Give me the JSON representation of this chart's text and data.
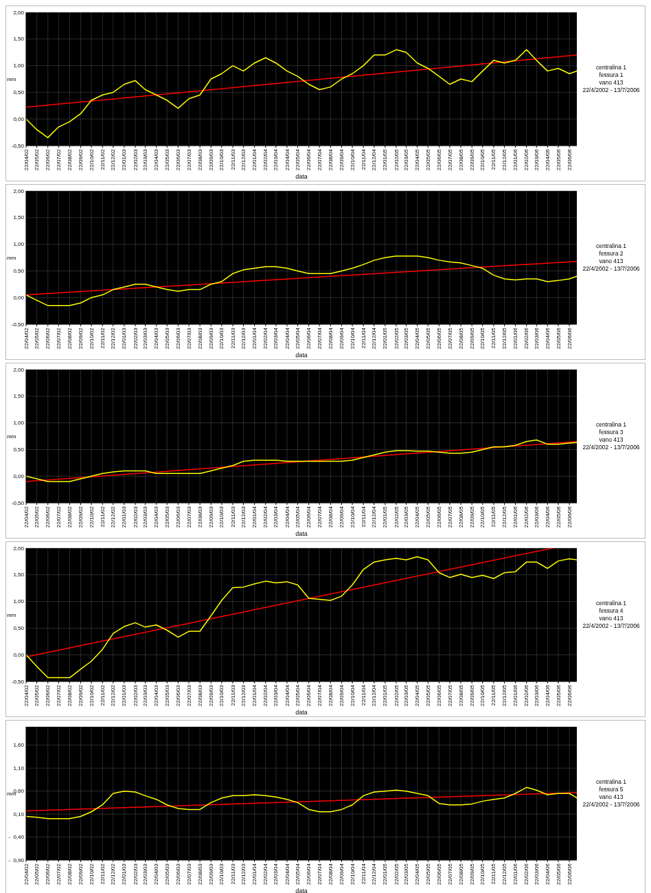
{
  "chart_data": [
    {
      "type": "line",
      "xlabel": "data",
      "ylabel": "mm",
      "grid": true,
      "xlim": [
        "2002-04-22",
        "2006-07-13"
      ],
      "ylim": [
        -0.5,
        2
      ],
      "yticks": [
        {
          "value": 2,
          "label": "2,00"
        },
        {
          "value": 1.5,
          "label": "1,50"
        },
        {
          "value": 1,
          "label": "1,00"
        },
        {
          "value": 0.5,
          "label": "0,50"
        },
        {
          "value": 0,
          "label": "0,00"
        },
        {
          "value": -0.5,
          "label": "-0,50"
        }
      ],
      "xticks": [
        {
          "value": "2002-04-22",
          "label": "22/04/02"
        },
        {
          "value": "2002-05-22",
          "label": "22/05/02"
        },
        {
          "value": "2002-06-22",
          "label": "22/06/02"
        },
        {
          "value": "2002-07-22",
          "label": "22/07/02"
        },
        {
          "value": "2002-08-22",
          "label": "22/08/02"
        },
        {
          "value": "2002-09-22",
          "label": "22/09/02"
        },
        {
          "value": "2002-10-22",
          "label": "22/10/02"
        },
        {
          "value": "2002-11-22",
          "label": "22/11/02"
        },
        {
          "value": "2002-12-22",
          "label": "22/12/02"
        },
        {
          "value": "2003-01-22",
          "label": "22/01/03"
        },
        {
          "value": "2003-02-22",
          "label": "22/02/03"
        },
        {
          "value": "2003-03-22",
          "label": "22/03/03"
        },
        {
          "value": "2003-04-22",
          "label": "22/04/03"
        },
        {
          "value": "2003-05-22",
          "label": "22/05/03"
        },
        {
          "value": "2003-06-22",
          "label": "22/06/03"
        },
        {
          "value": "2003-07-22",
          "label": "22/07/03"
        },
        {
          "value": "2003-08-22",
          "label": "22/08/03"
        },
        {
          "value": "2003-09-22",
          "label": "22/09/03"
        },
        {
          "value": "2003-10-22",
          "label": "22/10/03"
        },
        {
          "value": "2003-11-22",
          "label": "22/11/03"
        },
        {
          "value": "2003-12-22",
          "label": "22/12/03"
        },
        {
          "value": "2004-01-22",
          "label": "22/01/04"
        },
        {
          "value": "2004-02-22",
          "label": "22/02/04"
        },
        {
          "value": "2004-03-22",
          "label": "22/03/04"
        },
        {
          "value": "2004-04-22",
          "label": "22/04/04"
        },
        {
          "value": "2004-05-22",
          "label": "22/05/04"
        },
        {
          "value": "2004-06-22",
          "label": "22/06/04"
        },
        {
          "value": "2004-07-22",
          "label": "22/07/04"
        },
        {
          "value": "2004-08-22",
          "label": "22/08/04"
        },
        {
          "value": "2004-09-22",
          "label": "22/09/04"
        },
        {
          "value": "2004-10-22",
          "label": "22/10/04"
        },
        {
          "value": "2004-11-22",
          "label": "22/11/04"
        },
        {
          "value": "2004-12-22",
          "label": "22/12/04"
        },
        {
          "value": "2005-01-22",
          "label": "22/01/05"
        },
        {
          "value": "2005-02-22",
          "label": "22/02/05"
        },
        {
          "value": "2005-03-22",
          "label": "22/03/05"
        },
        {
          "value": "2005-04-22",
          "label": "22/04/05"
        },
        {
          "value": "2005-05-22",
          "label": "22/05/05"
        },
        {
          "value": "2005-06-22",
          "label": "22/06/05"
        },
        {
          "value": "2005-07-22",
          "label": "22/07/05"
        },
        {
          "value": "2005-08-22",
          "label": "22/08/05"
        },
        {
          "value": "2005-09-22",
          "label": "22/09/05"
        },
        {
          "value": "2005-10-22",
          "label": "22/10/05"
        },
        {
          "value": "2005-11-22",
          "label": "22/11/05"
        },
        {
          "value": "2005-12-22",
          "label": "22/12/05"
        },
        {
          "value": "2006-01-22",
          "label": "22/01/06"
        },
        {
          "value": "2006-02-22",
          "label": "22/02/06"
        },
        {
          "value": "2006-03-22",
          "label": "22/03/06"
        },
        {
          "value": "2006-04-22",
          "label": "22/04/06"
        },
        {
          "value": "2006-05-22",
          "label": "22/05/06"
        },
        {
          "value": "2006-06-22",
          "label": "22/06/06"
        }
      ],
      "annotations": [
        "centralina 1",
        "fessura 1",
        "vano 413",
        "22/4/2002 - 13/7/2006"
      ],
      "x": [
        "2002-04-22",
        "2002-05-22",
        "2002-06-22",
        "2002-07-22",
        "2002-08-22",
        "2002-09-22",
        "2002-10-22",
        "2002-11-22",
        "2002-12-22",
        "2003-01-22",
        "2003-02-22",
        "2003-03-22",
        "2003-04-22",
        "2003-05-22",
        "2003-06-22",
        "2003-07-22",
        "2003-08-22",
        "2003-09-22",
        "2003-10-22",
        "2003-11-22",
        "2003-12-22",
        "2004-01-22",
        "2004-02-22",
        "2004-03-22",
        "2004-04-22",
        "2004-05-22",
        "2004-06-22",
        "2004-07-22",
        "2004-08-22",
        "2004-09-22",
        "2004-10-22",
        "2004-11-22",
        "2004-12-22",
        "2005-01-22",
        "2005-02-22",
        "2005-03-22",
        "2005-04-22",
        "2005-05-22",
        "2005-06-22",
        "2005-07-22",
        "2005-08-22",
        "2005-09-22",
        "2005-10-22",
        "2005-11-22",
        "2005-12-22",
        "2006-01-22",
        "2006-02-22",
        "2006-03-22",
        "2006-04-22",
        "2006-05-22",
        "2006-06-22",
        "2006-07-13"
      ],
      "series": [
        {
          "type": "line",
          "color": "#ffff00",
          "values": [
            0.0,
            -0.2,
            -0.35,
            -0.15,
            -0.05,
            0.1,
            0.35,
            0.45,
            0.5,
            0.65,
            0.72,
            0.55,
            0.45,
            0.35,
            0.2,
            0.38,
            0.45,
            0.75,
            0.85,
            1.0,
            0.9,
            1.05,
            1.15,
            1.05,
            0.9,
            0.8,
            0.65,
            0.55,
            0.6,
            0.75,
            0.85,
            1.0,
            1.2,
            1.2,
            1.3,
            1.25,
            1.05,
            0.95,
            0.8,
            0.65,
            0.75,
            0.7,
            0.9,
            1.1,
            1.05,
            1.1,
            1.3,
            1.1,
            0.9,
            0.95,
            0.85,
            0.9
          ]
        },
        {
          "type": "line",
          "color": "#ff0000",
          "x": [
            "2002-04-22",
            "2006-07-13"
          ],
          "values": [
            0.22,
            1.2
          ]
        }
      ]
    },
    {
      "type": "line",
      "xlabel": "data",
      "ylabel": "mm",
      "grid": true,
      "xlim": [
        "2002-04-22",
        "2006-07-13"
      ],
      "ylim": [
        -0.5,
        2
      ],
      "yticks": [
        {
          "value": 2,
          "label": "2,00"
        },
        {
          "value": 1.5,
          "label": "1,50"
        },
        {
          "value": 1,
          "label": "1,00"
        },
        {
          "value": 0.5,
          "label": "0,50"
        },
        {
          "value": 0,
          "label": "0,00"
        },
        {
          "value": -0.5,
          "label": "-0,50"
        }
      ],
      "xticks": [
        {
          "value": "2002-04-22",
          "label": "22/04/02"
        },
        {
          "value": "2002-05-22",
          "label": "22/05/02"
        },
        {
          "value": "2002-06-22",
          "label": "22/06/02"
        },
        {
          "value": "2002-07-22",
          "label": "22/07/02"
        },
        {
          "value": "2002-08-22",
          "label": "22/08/02"
        },
        {
          "value": "2002-09-22",
          "label": "22/09/02"
        },
        {
          "value": "2002-10-22",
          "label": "22/10/02"
        },
        {
          "value": "2002-11-22",
          "label": "22/11/02"
        },
        {
          "value": "2002-12-22",
          "label": "22/12/02"
        },
        {
          "value": "2003-01-22",
          "label": "22/01/03"
        },
        {
          "value": "2003-02-22",
          "label": "22/02/03"
        },
        {
          "value": "2003-03-22",
          "label": "22/03/03"
        },
        {
          "value": "2003-04-22",
          "label": "22/04/03"
        },
        {
          "value": "2003-05-22",
          "label": "22/05/03"
        },
        {
          "value": "2003-06-22",
          "label": "22/06/03"
        },
        {
          "value": "2003-07-22",
          "label": "22/07/03"
        },
        {
          "value": "2003-08-22",
          "label": "22/08/03"
        },
        {
          "value": "2003-09-22",
          "label": "22/09/03"
        },
        {
          "value": "2003-10-22",
          "label": "22/10/03"
        },
        {
          "value": "2003-11-22",
          "label": "22/11/03"
        },
        {
          "value": "2003-12-22",
          "label": "22/12/03"
        },
        {
          "value": "2004-01-22",
          "label": "22/01/04"
        },
        {
          "value": "2004-02-22",
          "label": "22/02/04"
        },
        {
          "value": "2004-03-22",
          "label": "22/03/04"
        },
        {
          "value": "2004-04-22",
          "label": "22/04/04"
        },
        {
          "value": "2004-05-22",
          "label": "22/05/04"
        },
        {
          "value": "2004-06-22",
          "label": "22/06/04"
        },
        {
          "value": "2004-07-22",
          "label": "22/07/04"
        },
        {
          "value": "2004-08-22",
          "label": "22/08/04"
        },
        {
          "value": "2004-09-22",
          "label": "22/09/04"
        },
        {
          "value": "2004-10-22",
          "label": "22/10/04"
        },
        {
          "value": "2004-11-22",
          "label": "22/11/04"
        },
        {
          "value": "2004-12-22",
          "label": "22/12/04"
        },
        {
          "value": "2005-01-22",
          "label": "22/01/05"
        },
        {
          "value": "2005-02-22",
          "label": "22/02/05"
        },
        {
          "value": "2005-03-22",
          "label": "22/03/05"
        },
        {
          "value": "2005-04-22",
          "label": "22/04/05"
        },
        {
          "value": "2005-05-22",
          "label": "22/05/05"
        },
        {
          "value": "2005-06-22",
          "label": "22/06/05"
        },
        {
          "value": "2005-07-22",
          "label": "22/07/05"
        },
        {
          "value": "2005-08-22",
          "label": "22/08/05"
        },
        {
          "value": "2005-09-22",
          "label": "22/09/05"
        },
        {
          "value": "2005-10-22",
          "label": "22/10/05"
        },
        {
          "value": "2005-11-22",
          "label": "22/11/05"
        },
        {
          "value": "2005-12-22",
          "label": "22/12/05"
        },
        {
          "value": "2006-01-22",
          "label": "22/01/06"
        },
        {
          "value": "2006-02-22",
          "label": "22/02/06"
        },
        {
          "value": "2006-03-22",
          "label": "22/03/06"
        },
        {
          "value": "2006-04-22",
          "label": "22/04/06"
        },
        {
          "value": "2006-05-22",
          "label": "22/05/06"
        },
        {
          "value": "2006-06-22",
          "label": "22/06/06"
        }
      ],
      "annotations": [
        "centralina 1",
        "fessura 2",
        "vano 413",
        "22/4/2002 - 13/7/2006"
      ],
      "x": [
        "2002-04-22",
        "2002-05-22",
        "2002-06-22",
        "2002-07-22",
        "2002-08-22",
        "2002-09-22",
        "2002-10-22",
        "2002-11-22",
        "2002-12-22",
        "2003-01-22",
        "2003-02-22",
        "2003-03-22",
        "2003-04-22",
        "2003-05-22",
        "2003-06-22",
        "2003-07-22",
        "2003-08-22",
        "2003-09-22",
        "2003-10-22",
        "2003-11-22",
        "2003-12-22",
        "2004-01-22",
        "2004-02-22",
        "2004-03-22",
        "2004-04-22",
        "2004-05-22",
        "2004-06-22",
        "2004-07-22",
        "2004-08-22",
        "2004-09-22",
        "2004-10-22",
        "2004-11-22",
        "2004-12-22",
        "2005-01-22",
        "2005-02-22",
        "2005-03-22",
        "2005-04-22",
        "2005-05-22",
        "2005-06-22",
        "2005-07-22",
        "2005-08-22",
        "2005-09-22",
        "2005-10-22",
        "2005-11-22",
        "2005-12-22",
        "2006-01-22",
        "2006-02-22",
        "2006-03-22",
        "2006-04-22",
        "2006-05-22",
        "2006-06-22",
        "2006-07-13"
      ],
      "series": [
        {
          "type": "line",
          "color": "#ffff00",
          "values": [
            0.05,
            -0.05,
            -0.15,
            -0.15,
            -0.15,
            -0.1,
            0.0,
            0.05,
            0.15,
            0.2,
            0.25,
            0.25,
            0.2,
            0.15,
            0.12,
            0.15,
            0.15,
            0.25,
            0.3,
            0.45,
            0.52,
            0.55,
            0.58,
            0.58,
            0.55,
            0.5,
            0.45,
            0.45,
            0.45,
            0.5,
            0.55,
            0.62,
            0.7,
            0.75,
            0.78,
            0.78,
            0.78,
            0.75,
            0.7,
            0.67,
            0.65,
            0.6,
            0.55,
            0.42,
            0.35,
            0.33,
            0.35,
            0.35,
            0.3,
            0.32,
            0.35,
            0.4
          ]
        },
        {
          "type": "line",
          "color": "#ff0000",
          "x": [
            "2002-04-22",
            "2006-07-13"
          ],
          "values": [
            0.05,
            0.68
          ]
        }
      ]
    },
    {
      "type": "line",
      "xlabel": "data",
      "ylabel": "mm",
      "grid": true,
      "xlim": [
        "2002-04-22",
        "2006-07-13"
      ],
      "ylim": [
        -0.5,
        2
      ],
      "yticks": [
        {
          "value": 2,
          "label": "2,00"
        },
        {
          "value": 1.5,
          "label": "1,50"
        },
        {
          "value": 1,
          "label": "1,00"
        },
        {
          "value": 0.5,
          "label": "0,50"
        },
        {
          "value": 0,
          "label": "0,00"
        },
        {
          "value": -0.5,
          "label": "-0,50"
        }
      ],
      "xticks": [
        {
          "value": "2002-04-22",
          "label": "22/04/02"
        },
        {
          "value": "2002-05-22",
          "label": "22/05/02"
        },
        {
          "value": "2002-06-22",
          "label": "22/06/02"
        },
        {
          "value": "2002-07-22",
          "label": "22/07/02"
        },
        {
          "value": "2002-08-22",
          "label": "22/08/02"
        },
        {
          "value": "2002-09-22",
          "label": "22/09/02"
        },
        {
          "value": "2002-10-22",
          "label": "22/10/02"
        },
        {
          "value": "2002-11-22",
          "label": "22/11/02"
        },
        {
          "value": "2002-12-22",
          "label": "22/12/02"
        },
        {
          "value": "2003-01-22",
          "label": "22/01/03"
        },
        {
          "value": "2003-02-22",
          "label": "22/02/03"
        },
        {
          "value": "2003-03-22",
          "label": "22/03/03"
        },
        {
          "value": "2003-04-22",
          "label": "22/04/03"
        },
        {
          "value": "2003-05-22",
          "label": "22/05/03"
        },
        {
          "value": "2003-06-22",
          "label": "22/06/03"
        },
        {
          "value": "2003-07-22",
          "label": "22/07/03"
        },
        {
          "value": "2003-08-22",
          "label": "22/08/03"
        },
        {
          "value": "2003-09-22",
          "label": "22/09/03"
        },
        {
          "value": "2003-10-22",
          "label": "22/10/03"
        },
        {
          "value": "2003-11-22",
          "label": "22/11/03"
        },
        {
          "value": "2003-12-22",
          "label": "22/12/03"
        },
        {
          "value": "2004-01-22",
          "label": "22/01/04"
        },
        {
          "value": "2004-02-22",
          "label": "22/02/04"
        },
        {
          "value": "2004-03-22",
          "label": "22/03/04"
        },
        {
          "value": "2004-04-22",
          "label": "22/04/04"
        },
        {
          "value": "2004-05-22",
          "label": "22/05/04"
        },
        {
          "value": "2004-06-22",
          "label": "22/06/04"
        },
        {
          "value": "2004-07-22",
          "label": "22/07/04"
        },
        {
          "value": "2004-08-22",
          "label": "22/08/04"
        },
        {
          "value": "2004-09-22",
          "label": "22/09/04"
        },
        {
          "value": "2004-10-22",
          "label": "22/10/04"
        },
        {
          "value": "2004-11-22",
          "label": "22/11/04"
        },
        {
          "value": "2004-12-22",
          "label": "22/12/04"
        },
        {
          "value": "2005-01-22",
          "label": "22/01/05"
        },
        {
          "value": "2005-02-22",
          "label": "22/02/05"
        },
        {
          "value": "2005-03-22",
          "label": "22/03/05"
        },
        {
          "value": "2005-04-22",
          "label": "22/04/05"
        },
        {
          "value": "2005-05-22",
          "label": "22/05/05"
        },
        {
          "value": "2005-06-22",
          "label": "22/06/05"
        },
        {
          "value": "2005-07-22",
          "label": "22/07/05"
        },
        {
          "value": "2005-08-22",
          "label": "22/08/05"
        },
        {
          "value": "2005-09-22",
          "label": "22/09/05"
        },
        {
          "value": "2005-10-22",
          "label": "22/10/05"
        },
        {
          "value": "2005-11-22",
          "label": "22/11/05"
        },
        {
          "value": "2005-12-22",
          "label": "22/12/05"
        },
        {
          "value": "2006-01-22",
          "label": "22/01/06"
        },
        {
          "value": "2006-02-22",
          "label": "22/02/06"
        },
        {
          "value": "2006-03-22",
          "label": "22/03/06"
        },
        {
          "value": "2006-04-22",
          "label": "22/04/06"
        },
        {
          "value": "2006-05-22",
          "label": "22/05/06"
        },
        {
          "value": "2006-06-22",
          "label": "22/06/06"
        }
      ],
      "annotations": [
        "centralina 1",
        "fessura 3",
        "vano 413",
        "22/4/2002 - 13/7/2006"
      ],
      "x": [
        "2002-04-22",
        "2002-05-22",
        "2002-06-22",
        "2002-07-22",
        "2002-08-22",
        "2002-09-22",
        "2002-10-22",
        "2002-11-22",
        "2002-12-22",
        "2003-01-22",
        "2003-02-22",
        "2003-03-22",
        "2003-04-22",
        "2003-05-22",
        "2003-06-22",
        "2003-07-22",
        "2003-08-22",
        "2003-09-22",
        "2003-10-22",
        "2003-11-22",
        "2003-12-22",
        "2004-01-22",
        "2004-02-22",
        "2004-03-22",
        "2004-04-22",
        "2004-05-22",
        "2004-06-22",
        "2004-07-22",
        "2004-08-22",
        "2004-09-22",
        "2004-10-22",
        "2004-11-22",
        "2004-12-22",
        "2005-01-22",
        "2005-02-22",
        "2005-03-22",
        "2005-04-22",
        "2005-05-22",
        "2005-06-22",
        "2005-07-22",
        "2005-08-22",
        "2005-09-22",
        "2005-10-22",
        "2005-11-22",
        "2005-12-22",
        "2006-01-22",
        "2006-02-22",
        "2006-03-22",
        "2006-04-22",
        "2006-05-22",
        "2006-06-22",
        "2006-07-13"
      ],
      "series": [
        {
          "type": "line",
          "color": "#ffff00",
          "values": [
            0.0,
            -0.05,
            -0.1,
            -0.1,
            -0.1,
            -0.05,
            0.0,
            0.05,
            0.08,
            0.1,
            0.1,
            0.1,
            0.05,
            0.05,
            0.05,
            0.05,
            0.05,
            0.1,
            0.15,
            0.2,
            0.28,
            0.3,
            0.3,
            0.3,
            0.28,
            0.28,
            0.28,
            0.28,
            0.28,
            0.28,
            0.3,
            0.35,
            0.4,
            0.45,
            0.48,
            0.48,
            0.47,
            0.47,
            0.45,
            0.43,
            0.43,
            0.45,
            0.5,
            0.55,
            0.55,
            0.58,
            0.65,
            0.68,
            0.6,
            0.6,
            0.62,
            0.63
          ]
        },
        {
          "type": "line",
          "color": "#ff0000",
          "x": [
            "2002-04-22",
            "2006-07-13"
          ],
          "values": [
            -0.1,
            0.65
          ]
        }
      ]
    },
    {
      "type": "line",
      "xlabel": "data",
      "ylabel": "mm",
      "grid": true,
      "xlim": [
        "2002-04-22",
        "2006-07-13"
      ],
      "ylim": [
        -0.5,
        2
      ],
      "yticks": [
        {
          "value": 2,
          "label": "2,00"
        },
        {
          "value": 1.5,
          "label": "1,50"
        },
        {
          "value": 1,
          "label": "1,00"
        },
        {
          "value": 0.5,
          "label": "0,50"
        },
        {
          "value": 0,
          "label": "0,00"
        },
        {
          "value": -0.5,
          "label": "-0,50"
        }
      ],
      "xticks": [
        {
          "value": "2002-04-22",
          "label": "22/04/02"
        },
        {
          "value": "2002-05-22",
          "label": "22/05/02"
        },
        {
          "value": "2002-06-22",
          "label": "22/06/02"
        },
        {
          "value": "2002-07-22",
          "label": "22/07/02"
        },
        {
          "value": "2002-08-22",
          "label": "22/08/02"
        },
        {
          "value": "2002-09-22",
          "label": "22/09/02"
        },
        {
          "value": "2002-10-22",
          "label": "22/10/02"
        },
        {
          "value": "2002-11-22",
          "label": "22/11/02"
        },
        {
          "value": "2002-12-22",
          "label": "22/12/02"
        },
        {
          "value": "2003-01-22",
          "label": "22/01/03"
        },
        {
          "value": "2003-02-22",
          "label": "22/02/03"
        },
        {
          "value": "2003-03-22",
          "label": "22/03/03"
        },
        {
          "value": "2003-04-22",
          "label": "22/04/03"
        },
        {
          "value": "2003-05-22",
          "label": "22/05/03"
        },
        {
          "value": "2003-06-22",
          "label": "22/06/03"
        },
        {
          "value": "2003-07-22",
          "label": "22/07/03"
        },
        {
          "value": "2003-08-22",
          "label": "22/08/03"
        },
        {
          "value": "2003-09-22",
          "label": "22/09/03"
        },
        {
          "value": "2003-10-22",
          "label": "22/10/03"
        },
        {
          "value": "2003-11-22",
          "label": "22/11/03"
        },
        {
          "value": "2003-12-22",
          "label": "22/12/03"
        },
        {
          "value": "2004-01-22",
          "label": "22/01/04"
        },
        {
          "value": "2004-02-22",
          "label": "22/02/04"
        },
        {
          "value": "2004-03-22",
          "label": "22/03/04"
        },
        {
          "value": "2004-04-22",
          "label": "22/04/04"
        },
        {
          "value": "2004-05-22",
          "label": "22/05/04"
        },
        {
          "value": "2004-06-22",
          "label": "22/06/04"
        },
        {
          "value": "2004-07-22",
          "label": "22/07/04"
        },
        {
          "value": "2004-08-22",
          "label": "22/08/04"
        },
        {
          "value": "2004-09-22",
          "label": "22/09/04"
        },
        {
          "value": "2004-10-22",
          "label": "22/10/04"
        },
        {
          "value": "2004-11-22",
          "label": "22/11/04"
        },
        {
          "value": "2004-12-22",
          "label": "22/12/04"
        },
        {
          "value": "2005-01-22",
          "label": "22/01/05"
        },
        {
          "value": "2005-02-22",
          "label": "22/02/05"
        },
        {
          "value": "2005-03-22",
          "label": "22/03/05"
        },
        {
          "value": "2005-04-22",
          "label": "22/04/05"
        },
        {
          "value": "2005-05-22",
          "label": "22/05/05"
        },
        {
          "value": "2005-06-22",
          "label": "22/06/05"
        },
        {
          "value": "2005-07-22",
          "label": "22/07/05"
        },
        {
          "value": "2005-08-22",
          "label": "22/08/05"
        },
        {
          "value": "2005-09-22",
          "label": "22/09/05"
        },
        {
          "value": "2005-10-22",
          "label": "22/10/05"
        },
        {
          "value": "2005-11-22",
          "label": "22/11/05"
        },
        {
          "value": "2005-12-22",
          "label": "22/12/05"
        },
        {
          "value": "2006-01-22",
          "label": "22/01/06"
        },
        {
          "value": "2006-02-22",
          "label": "22/02/06"
        },
        {
          "value": "2006-03-22",
          "label": "22/03/06"
        },
        {
          "value": "2006-04-22",
          "label": "22/04/06"
        },
        {
          "value": "2006-05-22",
          "label": "22/05/06"
        },
        {
          "value": "2006-06-22",
          "label": "22/06/06"
        }
      ],
      "annotations": [
        "centralina 1",
        "fessura 4",
        "vano 413",
        "22/4/2002 - 13/7/2006"
      ],
      "x": [
        "2002-04-22",
        "2002-05-22",
        "2002-06-22",
        "2002-07-22",
        "2002-08-22",
        "2002-09-22",
        "2002-10-22",
        "2002-11-22",
        "2002-12-22",
        "2003-01-22",
        "2003-02-22",
        "2003-03-22",
        "2003-04-22",
        "2003-05-22",
        "2003-06-22",
        "2003-07-22",
        "2003-08-22",
        "2003-09-22",
        "2003-10-22",
        "2003-11-22",
        "2003-12-22",
        "2004-01-22",
        "2004-02-22",
        "2004-03-22",
        "2004-04-22",
        "2004-05-22",
        "2004-06-22",
        "2004-07-22",
        "2004-08-22",
        "2004-09-22",
        "2004-10-22",
        "2004-11-22",
        "2004-12-22",
        "2005-01-22",
        "2005-02-22",
        "2005-03-22",
        "2005-04-22",
        "2005-05-22",
        "2005-06-22",
        "2005-07-22",
        "2005-08-22",
        "2005-09-22",
        "2005-10-22",
        "2005-11-22",
        "2005-12-22",
        "2006-01-22",
        "2006-02-22",
        "2006-03-22",
        "2006-04-22",
        "2006-05-22",
        "2006-06-22",
        "2006-07-13"
      ],
      "series": [
        {
          "type": "line",
          "color": "#ffff00",
          "values": [
            0.0,
            -0.22,
            -0.43,
            -0.43,
            -0.43,
            -0.27,
            -0.12,
            0.1,
            0.4,
            0.53,
            0.6,
            0.52,
            0.56,
            0.46,
            0.33,
            0.44,
            0.44,
            0.73,
            1.02,
            1.26,
            1.27,
            1.33,
            1.38,
            1.35,
            1.37,
            1.31,
            1.06,
            1.04,
            1.02,
            1.1,
            1.31,
            1.6,
            1.74,
            1.78,
            1.81,
            1.78,
            1.84,
            1.78,
            1.54,
            1.45,
            1.51,
            1.45,
            1.49,
            1.43,
            1.54,
            1.56,
            1.74,
            1.74,
            1.62,
            1.76,
            1.8,
            1.78
          ]
        },
        {
          "type": "line",
          "color": "#ff0000",
          "x": [
            "2002-04-22",
            "2006-05-05"
          ],
          "values": [
            -0.04,
            2.0
          ]
        }
      ]
    },
    {
      "type": "line",
      "xlabel": "data",
      "ylabel": "mm",
      "grid": true,
      "xlim": [
        "2002-04-22",
        "2006-07-13"
      ],
      "ylim": [
        -0.9,
        2
      ],
      "yticks": [
        {
          "value": 1.6,
          "label": "1,60"
        },
        {
          "value": 1.1,
          "label": "1,10"
        },
        {
          "value": 0.6,
          "label": "0,60"
        },
        {
          "value": 0.1,
          "label": "0,10"
        },
        {
          "value": -0.4,
          "label": "-  0,40"
        },
        {
          "value": -0.9,
          "label": "-  0,90"
        }
      ],
      "xticks": [
        {
          "value": "2002-04-22",
          "label": "22/04/02"
        },
        {
          "value": "2002-05-22",
          "label": "22/05/02"
        },
        {
          "value": "2002-06-22",
          "label": "22/06/02"
        },
        {
          "value": "2002-07-22",
          "label": "22/07/02"
        },
        {
          "value": "2002-08-22",
          "label": "22/08/02"
        },
        {
          "value": "2002-09-22",
          "label": "22/09/02"
        },
        {
          "value": "2002-10-22",
          "label": "22/10/02"
        },
        {
          "value": "2002-11-22",
          "label": "22/11/02"
        },
        {
          "value": "2002-12-22",
          "label": "22/12/02"
        },
        {
          "value": "2003-01-22",
          "label": "22/01/03"
        },
        {
          "value": "2003-02-22",
          "label": "22/02/03"
        },
        {
          "value": "2003-03-22",
          "label": "22/03/03"
        },
        {
          "value": "2003-04-22",
          "label": "22/04/03"
        },
        {
          "value": "2003-05-22",
          "label": "22/05/03"
        },
        {
          "value": "2003-06-22",
          "label": "22/06/03"
        },
        {
          "value": "2003-07-22",
          "label": "22/07/03"
        },
        {
          "value": "2003-08-22",
          "label": "22/08/03"
        },
        {
          "value": "2003-09-22",
          "label": "22/09/03"
        },
        {
          "value": "2003-10-22",
          "label": "22/10/03"
        },
        {
          "value": "2003-11-22",
          "label": "22/11/03"
        },
        {
          "value": "2003-12-22",
          "label": "22/12/03"
        },
        {
          "value": "2004-01-22",
          "label": "22/01/04"
        },
        {
          "value": "2004-02-22",
          "label": "22/02/04"
        },
        {
          "value": "2004-03-22",
          "label": "22/03/04"
        },
        {
          "value": "2004-04-22",
          "label": "22/04/04"
        },
        {
          "value": "2004-05-22",
          "label": "22/05/04"
        },
        {
          "value": "2004-06-22",
          "label": "22/06/04"
        },
        {
          "value": "2004-07-22",
          "label": "22/07/04"
        },
        {
          "value": "2004-08-22",
          "label": "22/08/04"
        },
        {
          "value": "2004-09-22",
          "label": "22/09/04"
        },
        {
          "value": "2004-10-22",
          "label": "22/10/04"
        },
        {
          "value": "2004-11-22",
          "label": "22/11/04"
        },
        {
          "value": "2004-12-22",
          "label": "22/12/04"
        },
        {
          "value": "2005-01-22",
          "label": "22/01/05"
        },
        {
          "value": "2005-02-22",
          "label": "22/02/05"
        },
        {
          "value": "2005-03-22",
          "label": "22/03/05"
        },
        {
          "value": "2005-04-22",
          "label": "22/04/05"
        },
        {
          "value": "2005-05-22",
          "label": "22/05/05"
        },
        {
          "value": "2005-06-22",
          "label": "22/06/05"
        },
        {
          "value": "2005-07-22",
          "label": "22/07/05"
        },
        {
          "value": "2005-08-22",
          "label": "22/08/05"
        },
        {
          "value": "2005-09-22",
          "label": "22/09/05"
        },
        {
          "value": "2005-10-22",
          "label": "22/10/05"
        },
        {
          "value": "2005-11-22",
          "label": "22/11/05"
        },
        {
          "value": "2005-12-22",
          "label": "22/12/05"
        },
        {
          "value": "2006-01-22",
          "label": "22/01/06"
        },
        {
          "value": "2006-02-22",
          "label": "22/02/06"
        },
        {
          "value": "2006-03-22",
          "label": "22/03/06"
        },
        {
          "value": "2006-04-22",
          "label": "22/04/06"
        },
        {
          "value": "2006-05-22",
          "label": "22/05/06"
        },
        {
          "value": "2006-06-22",
          "label": "22/06/06"
        }
      ],
      "annotations": [
        "centralina 1",
        "fessura 5",
        "vano 413",
        "22/4/2002 - 13/7/2006"
      ],
      "x": [
        "2002-04-22",
        "2002-05-22",
        "2002-06-22",
        "2002-07-22",
        "2002-08-22",
        "2002-09-22",
        "2002-10-22",
        "2002-11-22",
        "2002-12-22",
        "2003-01-22",
        "2003-02-22",
        "2003-03-22",
        "2003-04-22",
        "2003-05-22",
        "2003-06-22",
        "2003-07-22",
        "2003-08-22",
        "2003-09-22",
        "2003-10-22",
        "2003-11-22",
        "2003-12-22",
        "2004-01-22",
        "2004-02-22",
        "2004-03-22",
        "2004-04-22",
        "2004-05-22",
        "2004-06-22",
        "2004-07-22",
        "2004-08-22",
        "2004-09-22",
        "2004-10-22",
        "2004-11-22",
        "2004-12-22",
        "2005-01-22",
        "2005-02-22",
        "2005-03-22",
        "2005-04-22",
        "2005-05-22",
        "2005-06-22",
        "2005-07-22",
        "2005-08-22",
        "2005-09-22",
        "2005-10-22",
        "2005-11-22",
        "2005-12-22",
        "2006-01-22",
        "2006-02-22",
        "2006-03-22",
        "2006-04-22",
        "2006-05-22",
        "2006-06-22",
        "2006-07-13"
      ],
      "series": [
        {
          "type": "line",
          "color": "#ffff00",
          "values": [
            0.05,
            0.03,
            0.0,
            0.0,
            0.0,
            0.05,
            0.15,
            0.3,
            0.55,
            0.6,
            0.58,
            0.5,
            0.42,
            0.3,
            0.22,
            0.2,
            0.2,
            0.35,
            0.45,
            0.5,
            0.5,
            0.52,
            0.5,
            0.47,
            0.42,
            0.35,
            0.2,
            0.15,
            0.15,
            0.2,
            0.3,
            0.5,
            0.58,
            0.6,
            0.62,
            0.6,
            0.55,
            0.5,
            0.33,
            0.3,
            0.3,
            0.32,
            0.38,
            0.42,
            0.45,
            0.55,
            0.68,
            0.62,
            0.52,
            0.55,
            0.55,
            0.45
          ]
        },
        {
          "type": "line",
          "color": "#ff0000",
          "x": [
            "2002-04-22",
            "2006-07-13"
          ],
          "values": [
            0.17,
            0.57
          ]
        }
      ]
    }
  ]
}
